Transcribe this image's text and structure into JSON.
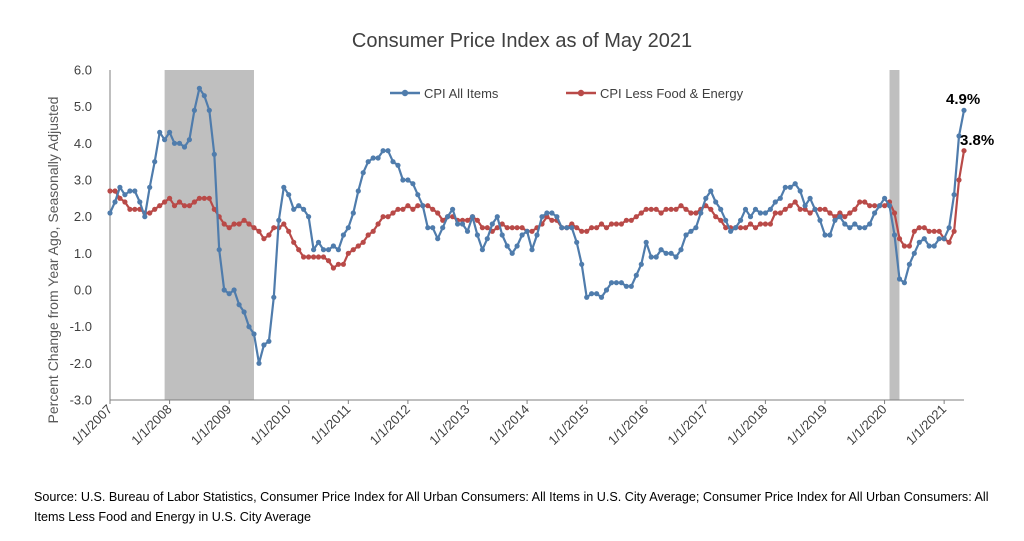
{
  "chart_data": {
    "type": "line",
    "title": "Consumer Price Index as of May 2021",
    "ylabel": "Percent Change from Year Ago, Seasonally Adjusted",
    "xlabel": "",
    "ylim": [
      -3.0,
      6.0
    ],
    "y_ticks": [
      "6.0",
      "5.0",
      "4.0",
      "3.0",
      "2.0",
      "1.0",
      "0.0",
      "-1.0",
      "-2.0",
      "-3.0"
    ],
    "x_ticks": [
      "1/1/2007",
      "1/1/2008",
      "1/1/2009",
      "1/1/2010",
      "1/1/2011",
      "1/1/2012",
      "1/1/2013",
      "1/1/2014",
      "1/1/2015",
      "1/1/2016",
      "1/1/2017",
      "1/1/2018",
      "1/1/2019",
      "1/1/2020",
      "1/1/2021"
    ],
    "x_start": "2007-01",
    "x_end": "2021-05",
    "recessions": [
      {
        "start": "2007-12",
        "end": "2009-06"
      },
      {
        "start": "2020-02",
        "end": "2020-04"
      }
    ],
    "grid": false,
    "legend_position": "top-center",
    "series": [
      {
        "name": "CPI All Items",
        "color": "#4F7CAC",
        "values": [
          2.1,
          2.4,
          2.8,
          2.6,
          2.7,
          2.7,
          2.4,
          2.0,
          2.8,
          3.5,
          4.3,
          4.1,
          4.3,
          4.0,
          4.0,
          3.9,
          4.1,
          4.9,
          5.5,
          5.3,
          4.9,
          3.7,
          1.1,
          0.0,
          -0.1,
          0.0,
          -0.4,
          -0.6,
          -1.0,
          -1.2,
          -2.0,
          -1.5,
          -1.4,
          -0.2,
          1.9,
          2.8,
          2.6,
          2.2,
          2.3,
          2.2,
          2.0,
          1.1,
          1.3,
          1.1,
          1.1,
          1.2,
          1.1,
          1.5,
          1.7,
          2.1,
          2.7,
          3.2,
          3.5,
          3.6,
          3.6,
          3.8,
          3.8,
          3.5,
          3.4,
          3.0,
          3.0,
          2.9,
          2.6,
          2.3,
          1.7,
          1.7,
          1.4,
          1.7,
          2.0,
          2.2,
          1.8,
          1.8,
          1.6,
          2.0,
          1.5,
          1.1,
          1.4,
          1.8,
          2.0,
          1.5,
          1.2,
          1.0,
          1.2,
          1.5,
          1.6,
          1.1,
          1.5,
          2.0,
          2.1,
          2.1,
          2.0,
          1.7,
          1.7,
          1.7,
          1.3,
          0.7,
          -0.2,
          -0.1,
          -0.1,
          -0.2,
          0.0,
          0.2,
          0.2,
          0.2,
          0.1,
          0.1,
          0.4,
          0.7,
          1.3,
          0.9,
          0.9,
          1.1,
          1.0,
          1.0,
          0.9,
          1.1,
          1.5,
          1.6,
          1.7,
          2.1,
          2.5,
          2.7,
          2.4,
          2.2,
          1.9,
          1.6,
          1.7,
          1.9,
          2.2,
          2.0,
          2.2,
          2.1,
          2.1,
          2.2,
          2.4,
          2.5,
          2.8,
          2.8,
          2.9,
          2.7,
          2.3,
          2.5,
          2.2,
          1.9,
          1.5,
          1.5,
          1.9,
          2.0,
          1.8,
          1.7,
          1.8,
          1.7,
          1.7,
          1.8,
          2.1,
          2.3,
          2.5,
          2.3,
          1.5,
          0.3,
          0.2,
          0.7,
          1.0,
          1.3,
          1.4,
          1.2,
          1.2,
          1.4,
          1.4,
          1.7,
          2.6,
          4.2,
          4.9
        ]
      },
      {
        "name": "CPI Less Food & Energy",
        "color": "#B94A48",
        "values": [
          2.7,
          2.7,
          2.5,
          2.4,
          2.2,
          2.2,
          2.2,
          2.1,
          2.1,
          2.2,
          2.3,
          2.4,
          2.5,
          2.3,
          2.4,
          2.3,
          2.3,
          2.4,
          2.5,
          2.5,
          2.5,
          2.2,
          2.0,
          1.8,
          1.7,
          1.8,
          1.8,
          1.9,
          1.8,
          1.7,
          1.6,
          1.4,
          1.5,
          1.7,
          1.7,
          1.8,
          1.6,
          1.3,
          1.1,
          0.9,
          0.9,
          0.9,
          0.9,
          0.9,
          0.8,
          0.6,
          0.7,
          0.7,
          1.0,
          1.1,
          1.2,
          1.3,
          1.5,
          1.6,
          1.8,
          2.0,
          2.0,
          2.1,
          2.2,
          2.2,
          2.3,
          2.2,
          2.3,
          2.3,
          2.3,
          2.2,
          2.1,
          1.9,
          2.0,
          2.0,
          1.9,
          1.9,
          1.9,
          2.0,
          1.9,
          1.7,
          1.7,
          1.6,
          1.7,
          1.8,
          1.7,
          1.7,
          1.7,
          1.7,
          1.6,
          1.6,
          1.7,
          1.8,
          2.0,
          1.9,
          1.9,
          1.7,
          1.7,
          1.8,
          1.7,
          1.6,
          1.6,
          1.7,
          1.7,
          1.8,
          1.7,
          1.8,
          1.8,
          1.8,
          1.9,
          1.9,
          2.0,
          2.1,
          2.2,
          2.2,
          2.2,
          2.1,
          2.2,
          2.2,
          2.2,
          2.3,
          2.2,
          2.1,
          2.1,
          2.2,
          2.3,
          2.2,
          2.0,
          1.9,
          1.7,
          1.7,
          1.7,
          1.7,
          1.7,
          1.8,
          1.7,
          1.8,
          1.8,
          1.8,
          2.1,
          2.1,
          2.2,
          2.3,
          2.4,
          2.2,
          2.2,
          2.1,
          2.2,
          2.2,
          2.2,
          2.1,
          2.0,
          2.1,
          2.0,
          2.1,
          2.2,
          2.4,
          2.4,
          2.3,
          2.3,
          2.3,
          2.3,
          2.4,
          2.1,
          1.4,
          1.2,
          1.2,
          1.6,
          1.7,
          1.7,
          1.6,
          1.6,
          1.6,
          1.4,
          1.3,
          1.6,
          3.0,
          3.8
        ]
      }
    ],
    "annotations": [
      "4.9%",
      "3.8%"
    ]
  },
  "source_note": "Source: U.S. Bureau of Labor Statistics, Consumer Price Index for All Urban Consumers: All Items in U.S. City Average; Consumer Price Index for All Urban Consumers: All Items Less Food and Energy in U.S. City Average"
}
